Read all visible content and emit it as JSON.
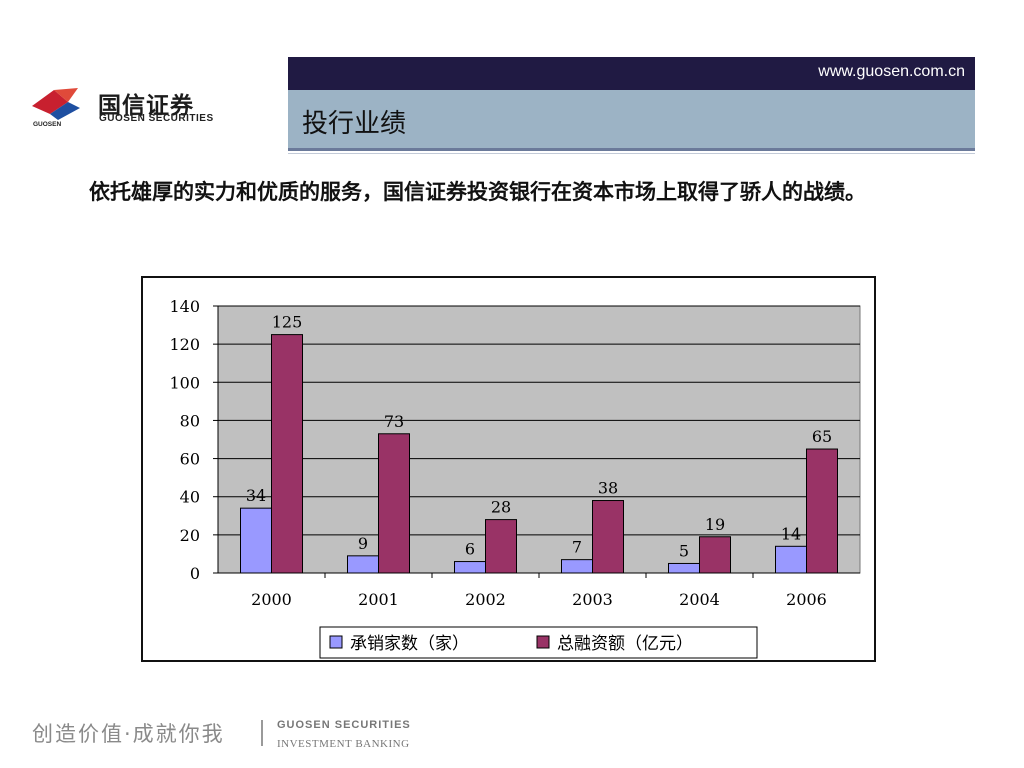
{
  "header": {
    "logo_cn": "国信证券",
    "logo_en": "GUOSEN SECURITIES",
    "logo_small": "GUOSEN",
    "url": "www.guosen.com.cn",
    "title": "投行业绩"
  },
  "intro": "依托雄厚的实力和优质的服务，国信证券投资银行在资本市场上取得了骄人的战绩。",
  "chart_data": {
    "type": "bar",
    "categories": [
      "2000",
      "2001",
      "2002",
      "2003",
      "2004",
      "2006"
    ],
    "series": [
      {
        "name": "承销家数（家）",
        "values": [
          34,
          9,
          6,
          7,
          5,
          14
        ],
        "color": "#9999ff"
      },
      {
        "name": "总融资额（亿元）",
        "values": [
          125,
          73,
          28,
          38,
          19,
          65
        ],
        "color": "#993366"
      }
    ],
    "ylim": [
      0,
      140
    ],
    "yticks": [
      0,
      20,
      40,
      60,
      80,
      100,
      120,
      140
    ],
    "grid": true,
    "legend_position": "bottom",
    "plot_background": "#c0c0c0"
  },
  "footer": {
    "slogan": "创造价值·成就你我",
    "en_line1": "GUOSEN SECURITIES",
    "en_line2": "INVESTMENT BANKING"
  }
}
